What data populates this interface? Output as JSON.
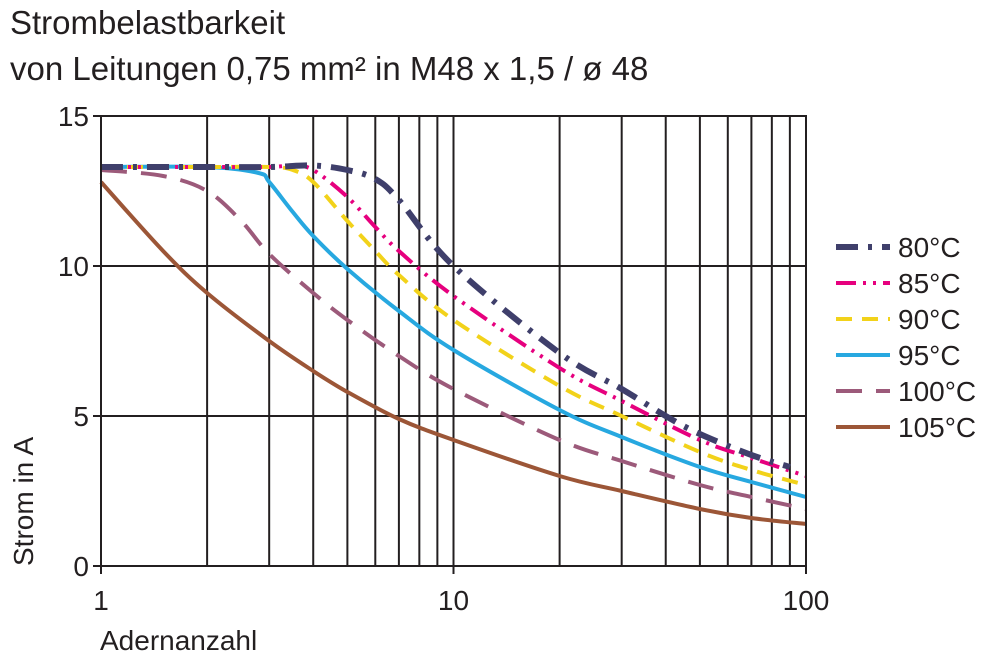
{
  "chart_data": {
    "type": "line",
    "title": "Strombelastbarkeit",
    "subtitle": "von Leitungen 0,75 mm² in M48 x 1,5 / ø 48",
    "xlabel": "Adernanzahl",
    "ylabel": "Strom in A",
    "xscale": "log",
    "xlim": [
      1,
      100
    ],
    "ylim": [
      0,
      15
    ],
    "xticks": [
      1,
      10,
      100
    ],
    "xtick_labels": [
      "1",
      "10",
      "100"
    ],
    "yticks": [
      0,
      5,
      10,
      15
    ],
    "ytick_labels": [
      "0",
      "5",
      "10",
      "15"
    ],
    "grid": true,
    "legend_position": "right",
    "series": [
      {
        "name": "80°C",
        "color": "#3f3f6b",
        "dash": "dashdot",
        "x": [
          1,
          2,
          3,
          4,
          5,
          6,
          7,
          10,
          20,
          30,
          40,
          50,
          70,
          90
        ],
        "y": [
          13.3,
          13.3,
          13.3,
          13.35,
          13.2,
          12.9,
          12.2,
          10.0,
          7.1,
          5.9,
          5.0,
          4.4,
          3.7,
          3.3
        ]
      },
      {
        "name": "85°C",
        "color": "#e6007e",
        "dash": "dashdotdot",
        "x": [
          1,
          2,
          3,
          3.5,
          4,
          5,
          6,
          7,
          10,
          20,
          30,
          50,
          70,
          100
        ],
        "y": [
          13.3,
          13.3,
          13.3,
          13.35,
          13.2,
          12.3,
          11.3,
          10.5,
          9.0,
          6.6,
          5.5,
          4.2,
          3.6,
          3.0
        ]
      },
      {
        "name": "90°C",
        "color": "#f2d21a",
        "dash": "dash",
        "x": [
          1,
          2,
          3,
          3.5,
          4,
          5,
          6,
          7,
          10,
          20,
          30,
          50,
          70,
          100
        ],
        "y": [
          13.3,
          13.3,
          13.3,
          13.2,
          12.8,
          11.5,
          10.5,
          9.7,
          8.2,
          6.0,
          5.0,
          3.8,
          3.2,
          2.7
        ]
      },
      {
        "name": "95°C",
        "color": "#27a8e0",
        "dash": "solid",
        "x": [
          1,
          2,
          2.8,
          3,
          3.5,
          4,
          5,
          7,
          10,
          20,
          30,
          50,
          70,
          100
        ],
        "y": [
          13.3,
          13.3,
          13.1,
          12.8,
          11.8,
          11.0,
          9.9,
          8.5,
          7.2,
          5.2,
          4.3,
          3.3,
          2.8,
          2.3
        ]
      },
      {
        "name": "100°C",
        "color": "#9c5a7a",
        "dash": "longdash",
        "x": [
          1,
          1.5,
          2,
          2.5,
          3,
          4,
          5,
          7,
          10,
          20,
          30,
          50,
          70,
          100
        ],
        "y": [
          13.2,
          13.0,
          12.5,
          11.5,
          10.4,
          9.1,
          8.2,
          7.0,
          5.9,
          4.2,
          3.5,
          2.7,
          2.3,
          1.9
        ]
      },
      {
        "name": "105°C",
        "color": "#9c5637",
        "dash": "solid",
        "x": [
          1,
          1.5,
          2,
          3,
          4,
          5,
          7,
          10,
          20,
          30,
          50,
          70,
          100
        ],
        "y": [
          12.8,
          10.5,
          9.1,
          7.5,
          6.5,
          5.8,
          4.9,
          4.2,
          3.0,
          2.5,
          1.9,
          1.6,
          1.4
        ]
      }
    ]
  }
}
